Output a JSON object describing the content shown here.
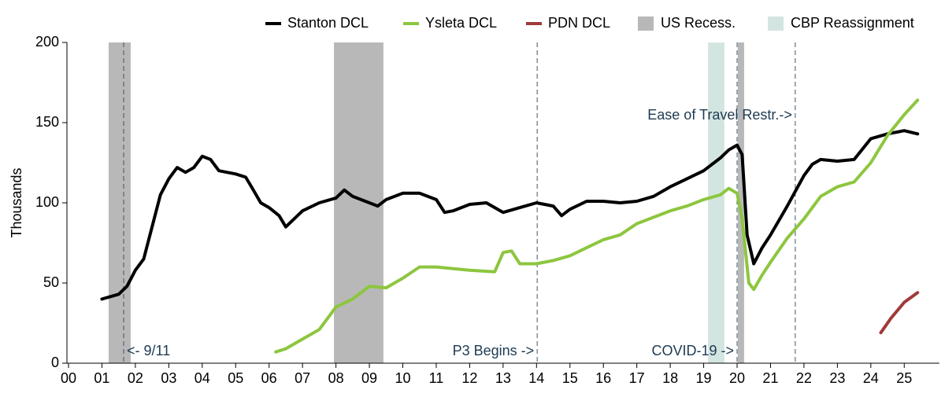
{
  "chart_data": {
    "type": "line",
    "y_label": "Thousands",
    "xlim": [
      0,
      26
    ],
    "ylim": [
      0,
      200
    ],
    "yticks": [
      0,
      50,
      100,
      150,
      200
    ],
    "xticks": [
      {
        "value": 0,
        "label": "00"
      },
      {
        "value": 1,
        "label": "01"
      },
      {
        "value": 2,
        "label": "02"
      },
      {
        "value": 3,
        "label": "03"
      },
      {
        "value": 4,
        "label": "04"
      },
      {
        "value": 5,
        "label": "05"
      },
      {
        "value": 6,
        "label": "06"
      },
      {
        "value": 7,
        "label": "07"
      },
      {
        "value": 8,
        "label": "08"
      },
      {
        "value": 9,
        "label": "09"
      },
      {
        "value": 10,
        "label": "10"
      },
      {
        "value": 11,
        "label": "11"
      },
      {
        "value": 12,
        "label": "12"
      },
      {
        "value": 13,
        "label": "13"
      },
      {
        "value": 14,
        "label": "14"
      },
      {
        "value": 15,
        "label": "15"
      },
      {
        "value": 16,
        "label": "16"
      },
      {
        "value": 17,
        "label": "17"
      },
      {
        "value": 18,
        "label": "18"
      },
      {
        "value": 19,
        "label": "19"
      },
      {
        "value": 20,
        "label": "20"
      },
      {
        "value": 21,
        "label": "21"
      },
      {
        "value": 22,
        "label": "22"
      },
      {
        "value": 23,
        "label": "23"
      },
      {
        "value": 24,
        "label": "24"
      },
      {
        "value": 25,
        "label": "25"
      }
    ],
    "series": [
      {
        "name": "Stanton DCL",
        "color": "#000000",
        "x": [
          1.0,
          1.5,
          1.75,
          2.0,
          2.25,
          2.5,
          2.75,
          3.0,
          3.25,
          3.5,
          3.75,
          4.0,
          4.25,
          4.5,
          5.0,
          5.3,
          5.5,
          5.75,
          6.0,
          6.3,
          6.5,
          6.75,
          7.0,
          7.5,
          8.0,
          8.25,
          8.5,
          9.0,
          9.25,
          9.5,
          10.0,
          10.5,
          11.0,
          11.25,
          11.5,
          12.0,
          12.5,
          13.0,
          13.5,
          14.0,
          14.5,
          14.75,
          15.0,
          15.5,
          16.0,
          16.5,
          17.0,
          17.5,
          18.0,
          18.5,
          19.0,
          19.5,
          19.75,
          20.0,
          20.15,
          20.3,
          20.5,
          20.75,
          21.0,
          21.5,
          22.0,
          22.25,
          22.5,
          23.0,
          23.5,
          24.0,
          24.5,
          25.0,
          25.4
        ],
        "values": [
          40,
          43,
          48,
          58,
          65,
          85,
          105,
          115,
          122,
          119,
          122,
          129,
          127,
          120,
          118,
          116,
          109,
          100,
          97,
          92,
          85,
          90,
          95,
          100,
          103,
          108,
          104,
          100,
          98,
          102,
          106,
          106,
          102,
          94,
          95,
          99,
          100,
          94,
          97,
          100,
          98,
          92,
          96,
          101,
          101,
          100,
          101,
          104,
          110,
          115,
          120,
          128,
          133,
          136,
          130,
          80,
          62,
          72,
          80,
          98,
          117,
          124,
          127,
          126,
          127,
          140,
          143,
          145,
          143
        ]
      },
      {
        "name": "Ysleta DCL",
        "color": "#8dc63f",
        "x": [
          6.2,
          6.5,
          7.0,
          7.5,
          8.0,
          8.5,
          9.0,
          9.5,
          10.0,
          10.5,
          11.0,
          12.0,
          12.75,
          13.0,
          13.25,
          13.5,
          14.0,
          14.5,
          15.0,
          15.5,
          16.0,
          16.5,
          17.0,
          17.5,
          18.0,
          18.5,
          19.0,
          19.5,
          19.75,
          20.0,
          20.15,
          20.35,
          20.5,
          20.75,
          21.0,
          21.5,
          22.0,
          22.5,
          23.0,
          23.5,
          24.0,
          24.5,
          25.0,
          25.4
        ],
        "values": [
          7,
          9,
          15,
          21,
          35,
          40,
          48,
          47,
          53,
          60,
          60,
          58,
          57,
          69,
          70,
          62,
          62,
          64,
          67,
          72,
          77,
          80,
          87,
          91,
          95,
          98,
          102,
          105,
          109,
          106,
          90,
          50,
          46,
          55,
          63,
          78,
          90,
          104,
          110,
          113,
          125,
          142,
          155,
          164
        ]
      },
      {
        "name": "PDN DCL",
        "color": "#a03a3a",
        "x": [
          24.3,
          24.6,
          25.0,
          25.4
        ],
        "values": [
          19,
          28,
          38,
          44
        ]
      }
    ],
    "bands": [
      {
        "name": "US Recess.",
        "color": "#b8b8b8",
        "ranges": [
          [
            1.2,
            1.86
          ],
          [
            7.94,
            9.42
          ],
          [
            20.02,
            20.21
          ]
        ]
      },
      {
        "name": "CBP Reassignment",
        "color": "#d3e5e1",
        "ranges": [
          [
            19.13,
            19.62
          ]
        ]
      }
    ],
    "events": [
      {
        "x": 1.65,
        "label": "<- 9/11"
      },
      {
        "x": 14.02,
        "label": "P3 Begins ->"
      },
      {
        "x": 20.0,
        "label": "COVID-19 ->"
      },
      {
        "x": 21.74,
        "label": "Ease of Travel Restr.->"
      }
    ]
  }
}
